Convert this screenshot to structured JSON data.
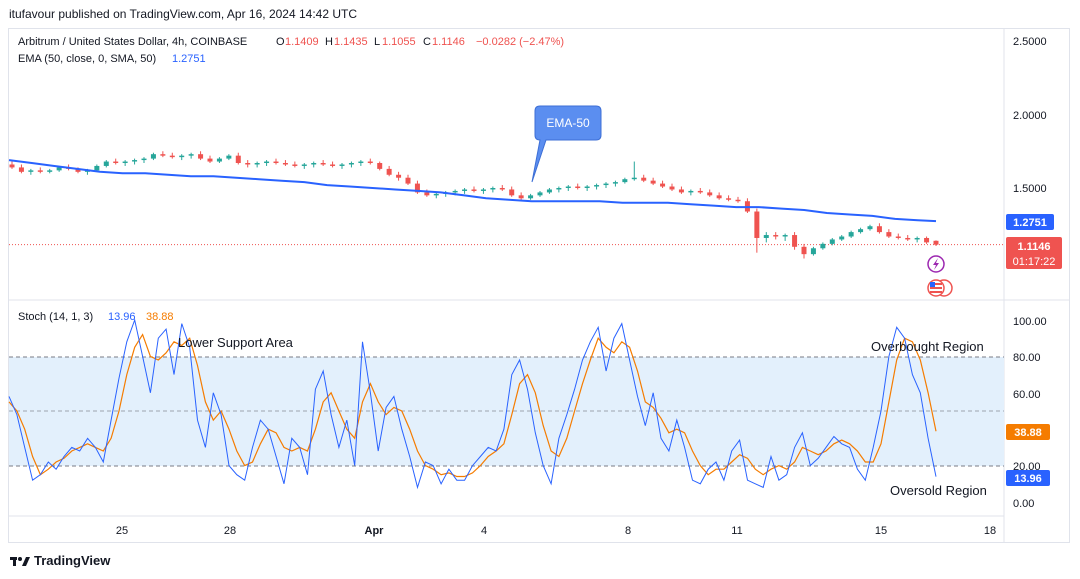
{
  "header": {
    "published": "itufavour published on TradingView.com, Apr 16, 2024 14:42 UTC"
  },
  "legend": {
    "symbol": "Arbitrum / United States Dollar, 4h, COINBASE",
    "o_label": "O",
    "o": "1.1409",
    "h_label": "H",
    "h": "1.1435",
    "l_label": "L",
    "l": "1.1055",
    "c_label": "C",
    "c": "1.1146",
    "change": "−0.0282 (−2.47%)",
    "ema_label": "EMA (50, close, 0, SMA, 50)",
    "ema_value": "1.2751",
    "stoch_label": "Stoch (14, 1, 3)",
    "stoch_k": "13.96",
    "stoch_d": "38.88"
  },
  "annotations": {
    "ema_callout": "EMA-50",
    "lower_support": "Lower Support Area",
    "overbought": "Overbought Region",
    "oversold": "Oversold Region"
  },
  "price_badges": {
    "ema": "1.2751",
    "last": "1.1146",
    "countdown": "01:17:22"
  },
  "stoch_badges": {
    "d": "38.88",
    "k": "13.96"
  },
  "footer": {
    "brand": "TradingView"
  },
  "colors": {
    "up": "#26a69a",
    "down": "#ef5350",
    "ema": "#2962ff",
    "stoch_k": "#2962ff",
    "stoch_d": "#f57c00",
    "band": "#e3f0fc",
    "callout": "#5b8ef0",
    "badge_red": "#ef5350",
    "badge_blue": "#2962ff",
    "badge_orange": "#f57c00"
  },
  "chart_data": [
    {
      "type": "candlestick",
      "title": "Arbitrum / United States Dollar, 4h, COINBASE",
      "x_ticks": [
        "25",
        "28",
        "Apr",
        "4",
        "8",
        "11",
        "15",
        "18"
      ],
      "y_ticks": [
        "2.5000",
        "2.0000",
        "1.5000"
      ],
      "ylim": [
        0.9,
        2.55
      ],
      "series": [
        {
          "name": "EMA (50, close, 0, SMA, 50)",
          "points": [
            [
              0,
              1.69
            ],
            [
              5,
              1.67
            ],
            [
              10,
              1.65
            ],
            [
              15,
              1.63
            ],
            [
              20,
              1.61
            ],
            [
              25,
              1.6
            ],
            [
              30,
              1.6
            ],
            [
              35,
              1.59
            ],
            [
              40,
              1.58
            ],
            [
              45,
              1.58
            ],
            [
              50,
              1.57
            ],
            [
              55,
              1.56
            ],
            [
              60,
              1.55
            ],
            [
              65,
              1.54
            ],
            [
              70,
              1.52
            ],
            [
              75,
              1.51
            ],
            [
              80,
              1.5
            ],
            [
              85,
              1.49
            ],
            [
              90,
              1.48
            ],
            [
              95,
              1.47
            ],
            [
              100,
              1.45
            ],
            [
              105,
              1.43
            ],
            [
              110,
              1.42
            ],
            [
              115,
              1.41
            ],
            [
              120,
              1.41
            ],
            [
              125,
              1.41
            ],
            [
              130,
              1.41
            ],
            [
              135,
              1.4
            ],
            [
              140,
              1.4
            ],
            [
              145,
              1.4
            ],
            [
              150,
              1.39
            ],
            [
              155,
              1.38
            ],
            [
              160,
              1.37
            ],
            [
              165,
              1.37
            ],
            [
              170,
              1.36
            ],
            [
              175,
              1.35
            ],
            [
              180,
              1.33
            ],
            [
              185,
              1.32
            ],
            [
              190,
              1.31
            ],
            [
              195,
              1.29
            ],
            [
              200,
              1.28
            ],
            [
              204,
              1.2751
            ]
          ]
        },
        {
          "name": "Price",
          "ohlc": [
            [
              1.66,
              1.68,
              1.63,
              1.64
            ],
            [
              1.64,
              1.66,
              1.6,
              1.61
            ],
            [
              1.61,
              1.63,
              1.59,
              1.62
            ],
            [
              1.62,
              1.64,
              1.6,
              1.61
            ],
            [
              1.61,
              1.63,
              1.6,
              1.62
            ],
            [
              1.62,
              1.65,
              1.61,
              1.64
            ],
            [
              1.64,
              1.66,
              1.62,
              1.63
            ],
            [
              1.63,
              1.64,
              1.6,
              1.61
            ],
            [
              1.61,
              1.63,
              1.59,
              1.62
            ],
            [
              1.62,
              1.66,
              1.61,
              1.65
            ],
            [
              1.65,
              1.69,
              1.64,
              1.68
            ],
            [
              1.68,
              1.7,
              1.66,
              1.67
            ],
            [
              1.67,
              1.69,
              1.65,
              1.68
            ],
            [
              1.68,
              1.7,
              1.66,
              1.69
            ],
            [
              1.69,
              1.71,
              1.67,
              1.7
            ],
            [
              1.7,
              1.74,
              1.69,
              1.73
            ],
            [
              1.73,
              1.75,
              1.71,
              1.72
            ],
            [
              1.72,
              1.74,
              1.7,
              1.71
            ],
            [
              1.71,
              1.73,
              1.69,
              1.72
            ],
            [
              1.72,
              1.74,
              1.7,
              1.73
            ],
            [
              1.73,
              1.75,
              1.69,
              1.7
            ],
            [
              1.7,
              1.72,
              1.67,
              1.68
            ],
            [
              1.68,
              1.71,
              1.67,
              1.7
            ],
            [
              1.7,
              1.73,
              1.69,
              1.72
            ],
            [
              1.72,
              1.74,
              1.66,
              1.67
            ],
            [
              1.67,
              1.69,
              1.64,
              1.66
            ],
            [
              1.66,
              1.68,
              1.64,
              1.67
            ],
            [
              1.67,
              1.69,
              1.65,
              1.68
            ],
            [
              1.68,
              1.7,
              1.66,
              1.67
            ],
            [
              1.67,
              1.69,
              1.65,
              1.66
            ],
            [
              1.66,
              1.68,
              1.64,
              1.65
            ],
            [
              1.65,
              1.67,
              1.63,
              1.66
            ],
            [
              1.66,
              1.68,
              1.64,
              1.67
            ],
            [
              1.67,
              1.69,
              1.65,
              1.66
            ],
            [
              1.66,
              1.68,
              1.64,
              1.65
            ],
            [
              1.65,
              1.67,
              1.63,
              1.66
            ],
            [
              1.66,
              1.68,
              1.64,
              1.67
            ],
            [
              1.67,
              1.69,
              1.65,
              1.68
            ],
            [
              1.68,
              1.7,
              1.66,
              1.67
            ],
            [
              1.67,
              1.68,
              1.62,
              1.63
            ],
            [
              1.63,
              1.65,
              1.58,
              1.59
            ],
            [
              1.59,
              1.61,
              1.55,
              1.57
            ],
            [
              1.57,
              1.59,
              1.52,
              1.53
            ],
            [
              1.53,
              1.55,
              1.46,
              1.47
            ],
            [
              1.47,
              1.49,
              1.44,
              1.45
            ],
            [
              1.45,
              1.47,
              1.43,
              1.46
            ],
            [
              1.46,
              1.48,
              1.44,
              1.47
            ],
            [
              1.47,
              1.49,
              1.45,
              1.48
            ],
            [
              1.48,
              1.5,
              1.46,
              1.49
            ],
            [
              1.49,
              1.51,
              1.47,
              1.48
            ],
            [
              1.48,
              1.5,
              1.46,
              1.49
            ],
            [
              1.49,
              1.51,
              1.47,
              1.5
            ],
            [
              1.5,
              1.52,
              1.48,
              1.49
            ],
            [
              1.49,
              1.51,
              1.44,
              1.45
            ],
            [
              1.45,
              1.47,
              1.41,
              1.43
            ],
            [
              1.43,
              1.46,
              1.42,
              1.45
            ],
            [
              1.45,
              1.48,
              1.44,
              1.47
            ],
            [
              1.47,
              1.5,
              1.46,
              1.49
            ],
            [
              1.49,
              1.51,
              1.47,
              1.5
            ],
            [
              1.5,
              1.52,
              1.48,
              1.51
            ],
            [
              1.51,
              1.53,
              1.49,
              1.5
            ],
            [
              1.5,
              1.52,
              1.48,
              1.51
            ],
            [
              1.51,
              1.53,
              1.49,
              1.52
            ],
            [
              1.52,
              1.54,
              1.5,
              1.53
            ],
            [
              1.53,
              1.55,
              1.51,
              1.54
            ],
            [
              1.54,
              1.57,
              1.53,
              1.56
            ],
            [
              1.56,
              1.68,
              1.55,
              1.57
            ],
            [
              1.57,
              1.59,
              1.54,
              1.55
            ],
            [
              1.55,
              1.57,
              1.52,
              1.53
            ],
            [
              1.53,
              1.55,
              1.5,
              1.51
            ],
            [
              1.51,
              1.53,
              1.48,
              1.49
            ],
            [
              1.49,
              1.51,
              1.46,
              1.47
            ],
            [
              1.47,
              1.49,
              1.45,
              1.48
            ],
            [
              1.48,
              1.5,
              1.46,
              1.47
            ],
            [
              1.47,
              1.49,
              1.44,
              1.45
            ],
            [
              1.45,
              1.47,
              1.42,
              1.43
            ],
            [
              1.43,
              1.45,
              1.41,
              1.42
            ],
            [
              1.42,
              1.44,
              1.4,
              1.41
            ],
            [
              1.41,
              1.43,
              1.33,
              1.34
            ],
            [
              1.34,
              1.36,
              1.06,
              1.16
            ],
            [
              1.16,
              1.2,
              1.13,
              1.18
            ],
            [
              1.18,
              1.2,
              1.15,
              1.17
            ],
            [
              1.17,
              1.19,
              1.14,
              1.18
            ],
            [
              1.18,
              1.2,
              1.08,
              1.1
            ],
            [
              1.1,
              1.12,
              1.02,
              1.05
            ],
            [
              1.05,
              1.1,
              1.04,
              1.09
            ],
            [
              1.09,
              1.13,
              1.08,
              1.12
            ],
            [
              1.12,
              1.16,
              1.11,
              1.15
            ],
            [
              1.15,
              1.18,
              1.14,
              1.17
            ],
            [
              1.17,
              1.21,
              1.16,
              1.2
            ],
            [
              1.2,
              1.23,
              1.19,
              1.22
            ],
            [
              1.22,
              1.25,
              1.21,
              1.24
            ],
            [
              1.24,
              1.26,
              1.19,
              1.2
            ],
            [
              1.2,
              1.22,
              1.16,
              1.17
            ],
            [
              1.17,
              1.19,
              1.15,
              1.16
            ],
            [
              1.16,
              1.18,
              1.14,
              1.15
            ],
            [
              1.15,
              1.17,
              1.13,
              1.16
            ],
            [
              1.16,
              1.17,
              1.12,
              1.13
            ],
            [
              1.1409,
              1.1435,
              1.1055,
              1.1146
            ]
          ]
        }
      ],
      "last_price_line": 1.1146
    },
    {
      "type": "line",
      "title": "Stoch (14, 1, 3)",
      "y_ticks": [
        "100.00",
        "80.00",
        "60.00",
        "40.00",
        "20.00",
        "0.00"
      ],
      "ylim": [
        0,
        100
      ],
      "bands": [
        20,
        50,
        80
      ],
      "series": [
        {
          "name": "K",
          "values": [
            58,
            48,
            30,
            12,
            15,
            22,
            18,
            25,
            30,
            28,
            35,
            30,
            22,
            45,
            68,
            88,
            100,
            80,
            60,
            90,
            95,
            70,
            98,
            85,
            45,
            30,
            60,
            48,
            20,
            15,
            12,
            30,
            45,
            40,
            25,
            10,
            35,
            30,
            15,
            62,
            72,
            48,
            30,
            45,
            20,
            88,
            60,
            28,
            52,
            58,
            40,
            25,
            8,
            22,
            20,
            10,
            18,
            12,
            12,
            20,
            25,
            30,
            28,
            40,
            70,
            78,
            62,
            38,
            20,
            10,
            35,
            48,
            62,
            78,
            88,
            96,
            72,
            90,
            98,
            78,
            58,
            42,
            60,
            35,
            28,
            45,
            30,
            12,
            10,
            18,
            22,
            12,
            28,
            34,
            12,
            10,
            8,
            25,
            12,
            15,
            30,
            38,
            20,
            24,
            30,
            36,
            32,
            30,
            18,
            12,
            30,
            50,
            80,
            96,
            90,
            70,
            60,
            35,
            13.96
          ]
        },
        {
          "name": "D",
          "values": [
            55,
            50,
            40,
            25,
            15,
            18,
            22,
            24,
            28,
            30,
            32,
            30,
            28,
            35,
            50,
            70,
            85,
            92,
            80,
            78,
            82,
            88,
            86,
            90,
            75,
            55,
            45,
            50,
            40,
            28,
            20,
            22,
            32,
            40,
            38,
            30,
            28,
            30,
            28,
            40,
            55,
            60,
            50,
            40,
            35,
            55,
            65,
            55,
            48,
            52,
            50,
            40,
            28,
            20,
            18,
            15,
            16,
            14,
            14,
            16,
            20,
            25,
            28,
            32,
            48,
            65,
            70,
            60,
            42,
            28,
            25,
            35,
            50,
            65,
            78,
            90,
            85,
            82,
            88,
            85,
            72,
            55,
            52,
            46,
            38,
            40,
            38,
            28,
            20,
            15,
            18,
            18,
            22,
            26,
            24,
            18,
            15,
            18,
            20,
            18,
            22,
            30,
            28,
            26,
            28,
            32,
            34,
            32,
            28,
            22,
            22,
            32,
            55,
            78,
            90,
            88,
            78,
            60,
            38.88
          ]
        }
      ],
      "annotations": [
        "Lower Support Area",
        "Overbought Region",
        "Oversold Region"
      ]
    }
  ]
}
